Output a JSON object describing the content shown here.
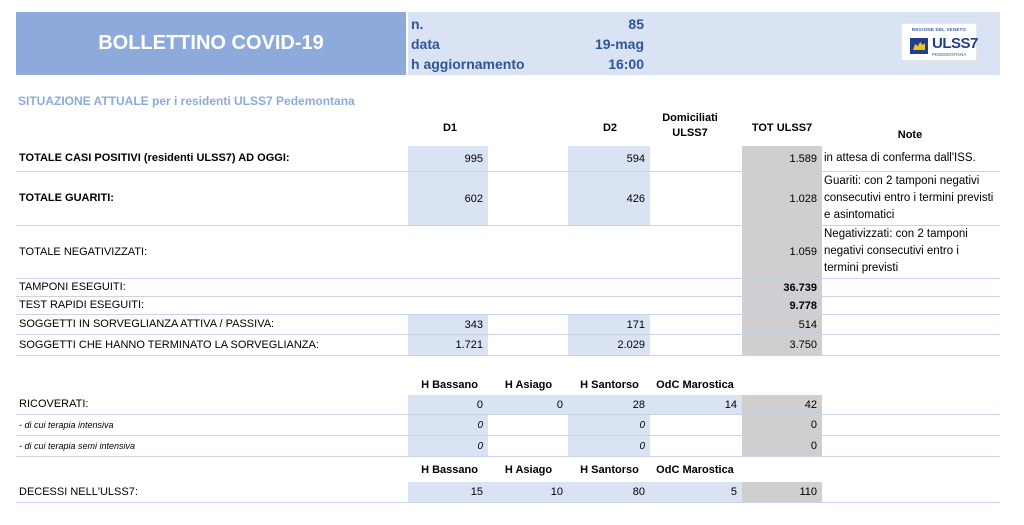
{
  "header": {
    "title": "BOLLETTINO COVID-19",
    "info": [
      {
        "label": "n.",
        "value": "85"
      },
      {
        "label": "data",
        "value": "19-mag"
      },
      {
        "label": "h aggiornamento",
        "value": "16:00"
      }
    ],
    "logo": {
      "top": "REGIONE DEL VENETO",
      "main": "ULSS7",
      "sub": "PEDEMONTANA"
    }
  },
  "section_title": "SITUAZIONE ATTUALE per i residenti ULSS7 Pedemontana",
  "table1": {
    "headers": {
      "d1": "D1",
      "d2": "D2",
      "dom": "Domiciliati ULSS7",
      "tot": "TOT ULSS7",
      "note": "Note"
    },
    "rows": [
      {
        "label": "TOTALE CASI POSITIVI (residenti ULSS7) AD OGGI:",
        "d1": "995",
        "d2": "594",
        "tot": "1.589",
        "note": "in attesa di conferma dall'ISS."
      },
      {
        "label": "TOTALE GUARITI:",
        "d1": "602",
        "d2": "426",
        "tot": "1.028",
        "note": "Guariti: con 2 tamponi negativi consecutivi entro i termini previsti e asintomatici"
      },
      {
        "label": "TOTALE NEGATIVIZZATI:",
        "d1": "",
        "d2": "",
        "tot": "1.059",
        "note": "Negativizzati: con 2 tamponi negativi consecutivi entro i termini previsti"
      },
      {
        "label": "TAMPONI ESEGUITI:",
        "d1": "",
        "d2": "",
        "tot": "36.739",
        "note": ""
      },
      {
        "label": "TEST RAPIDI ESEGUITI:",
        "d1": "",
        "d2": "",
        "tot": "9.778",
        "note": ""
      },
      {
        "label": "SOGGETTI IN SORVEGLIANZA ATTIVA / PASSIVA:",
        "d1": "343",
        "d2": "171",
        "tot": "514",
        "note": ""
      },
      {
        "label": "SOGGETTI CHE HANNO TERMINATO LA SORVEGLIANZA:",
        "d1": "1.721",
        "d2": "2.029",
        "tot": "3.750",
        "note": ""
      }
    ]
  },
  "table2": {
    "headers": {
      "bassano": "H Bassano",
      "asiago": "H Asiago",
      "santorso": "H Santorso",
      "marostica": "OdC Marostica"
    },
    "rows": [
      {
        "label": "RICOVERATI:",
        "bassano": "0",
        "asiago": "0",
        "santorso": "28",
        "marostica": "14",
        "tot": "42"
      },
      {
        "label": "- di cui terapia intensiva",
        "bassano": "0",
        "asiago": "",
        "santorso": "0",
        "marostica": "",
        "tot": "0"
      },
      {
        "label": "- di cui terapia semi intensiva",
        "bassano": "0",
        "asiago": "",
        "santorso": "0",
        "marostica": "",
        "tot": "0"
      }
    ]
  },
  "table3": {
    "headers": {
      "bassano": "H Bassano",
      "asiago": "H Asiago",
      "santorso": "H Santorso",
      "marostica": "OdC Marostica"
    },
    "rows": [
      {
        "label": "DECESSI NELL'ULSS7:",
        "bassano": "15",
        "asiago": "10",
        "santorso": "80",
        "marostica": "5",
        "tot": "110"
      }
    ]
  }
}
